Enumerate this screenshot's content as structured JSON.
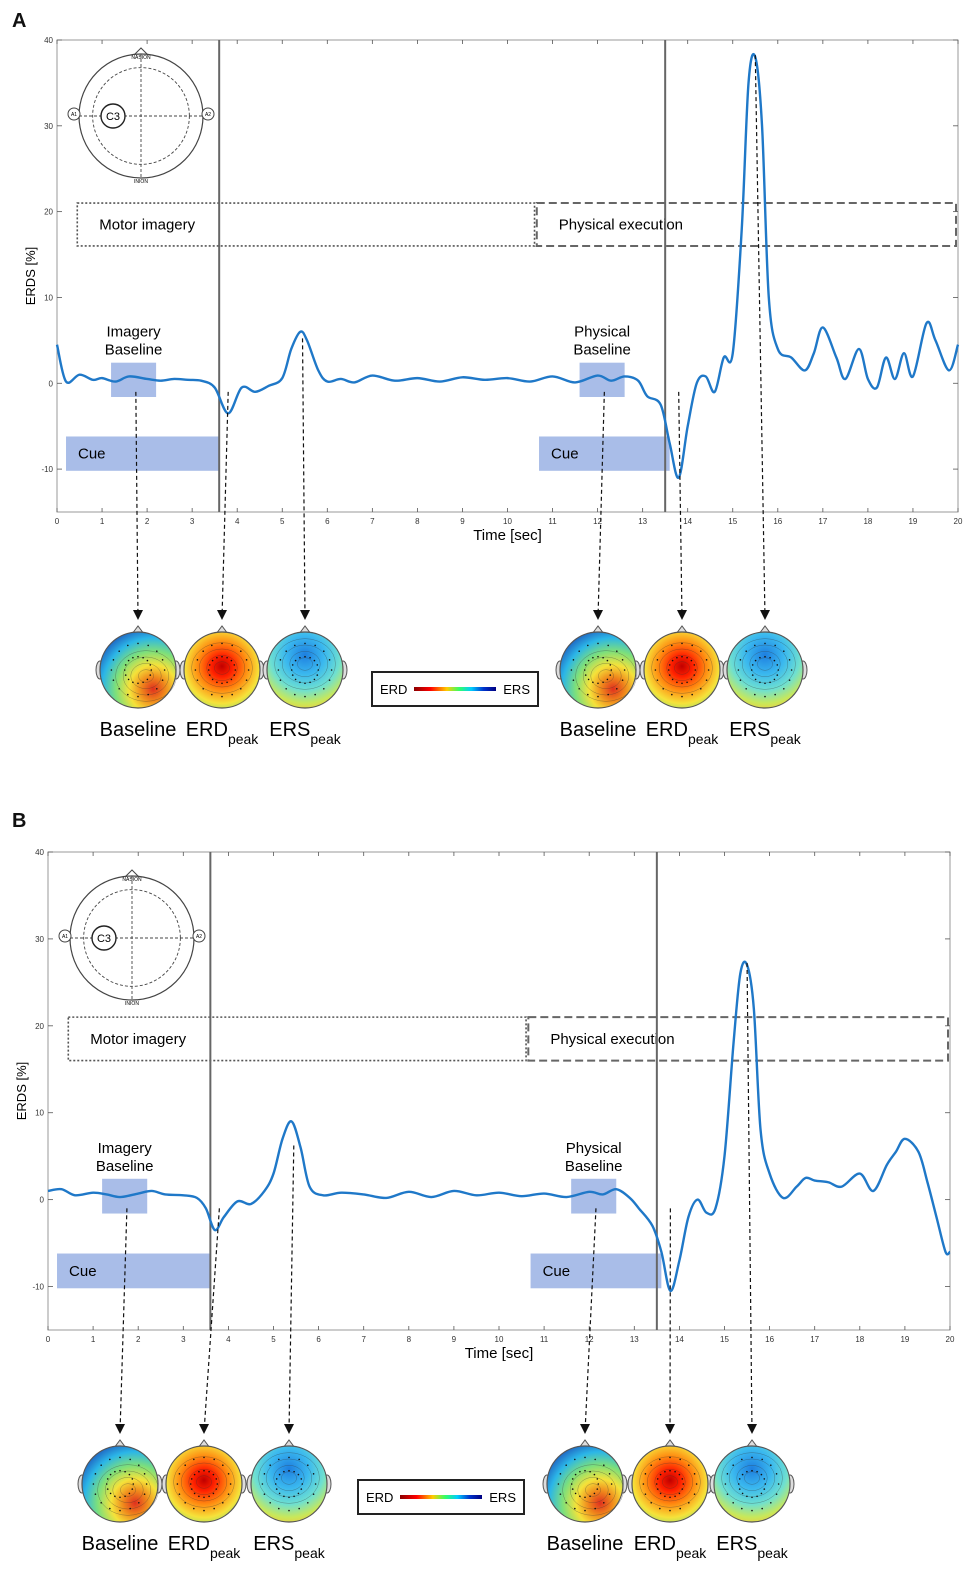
{
  "panels": [
    {
      "letter": "A",
      "chart_data": {
        "type": "line",
        "xlabel": "Time [sec]",
        "ylabel": "ERDS [%]",
        "xlim": [
          0,
          20
        ],
        "ylim": [
          -15,
          40
        ],
        "xticks": [
          0,
          1,
          2,
          3,
          4,
          5,
          6,
          7,
          8,
          9,
          10,
          11,
          12,
          13,
          14,
          15,
          16,
          17,
          18,
          19,
          20
        ],
        "yticks": [
          -10,
          0,
          10,
          20,
          30,
          40
        ],
        "vlines": [
          3.6,
          13.5
        ],
        "series": [
          {
            "x": [
              0,
              0.2,
              0.5,
              0.8,
              1.0,
              1.3,
              1.6,
              2.0,
              2.3,
              2.6,
              2.9,
              3.2,
              3.5,
              3.8,
              4.1,
              4.4,
              4.7,
              5.0,
              5.2,
              5.4,
              5.55,
              5.8,
              6.0,
              6.3,
              6.6,
              7.0,
              7.5,
              8.0,
              8.5,
              9.0,
              9.5,
              10.0,
              10.5,
              11.0,
              11.5,
              12.0,
              12.3,
              12.6,
              12.9,
              13.1,
              13.4,
              13.6,
              13.8,
              14.0,
              14.2,
              14.4,
              14.6,
              14.8,
              15.0,
              15.2,
              15.35,
              15.5,
              15.65,
              15.8,
              16.0,
              16.3,
              16.6,
              16.8,
              17.0,
              17.3,
              17.5,
              17.8,
              18.0,
              18.2,
              18.4,
              18.6,
              18.8,
              19.0,
              19.3,
              19.5,
              19.8,
              20.0
            ],
            "y": [
              4.5,
              0.2,
              1.0,
              0.4,
              0.6,
              0.2,
              0.8,
              0.5,
              0.3,
              0.5,
              0.4,
              0.3,
              -0.5,
              -3.5,
              -0.5,
              -1.0,
              -0.3,
              0.6,
              4.0,
              6.0,
              5.0,
              1.5,
              0.2,
              0.5,
              0.1,
              0.9,
              0.3,
              0.6,
              0.2,
              0.7,
              0.4,
              0.6,
              0.2,
              0.8,
              0.1,
              0.9,
              0.3,
              0.8,
              0.3,
              -1.5,
              -2.5,
              -7.0,
              -11.0,
              -5.0,
              0.0,
              0.8,
              -1.0,
              3.0,
              3.5,
              18.0,
              35.0,
              38.0,
              30.0,
              10.0,
              4.0,
              3.0,
              1.5,
              3.5,
              6.5,
              3.0,
              0.5,
              4.0,
              0.5,
              -0.5,
              3.0,
              0.5,
              3.5,
              0.8,
              7.0,
              5.0,
              1.5,
              4.5
            ]
          }
        ]
      },
      "labels": {
        "motor_imagery": "Motor imagery",
        "physical_execution": "Physical execution",
        "imagery_baseline_1": "Imagery",
        "imagery_baseline_2": "Baseline",
        "physical_baseline_1": "Physical",
        "physical_baseline_2": "Baseline",
        "cue": "Cue",
        "nasion": "NASION",
        "inion": "INION",
        "a1": "A1",
        "a2": "A2",
        "electrode": "C3"
      },
      "legend": {
        "left": "ERD",
        "right": "ERS"
      },
      "topo_labels": [
        {
          "main": "Baseline",
          "sub": ""
        },
        {
          "main": "ERD",
          "sub": "peak"
        },
        {
          "main": "ERS",
          "sub": "peak"
        },
        {
          "main": "Baseline",
          "sub": ""
        },
        {
          "main": "ERD",
          "sub": "peak"
        },
        {
          "main": "ERS",
          "sub": "peak"
        }
      ]
    },
    {
      "letter": "B",
      "chart_data": {
        "type": "line",
        "xlabel": "Time [sec]",
        "ylabel": "ERDS [%]",
        "xlim": [
          0,
          20
        ],
        "ylim": [
          -15,
          40
        ],
        "xticks": [
          0,
          1,
          2,
          3,
          4,
          5,
          6,
          7,
          8,
          9,
          10,
          11,
          12,
          13,
          14,
          15,
          16,
          17,
          18,
          19,
          20
        ],
        "yticks": [
          -10,
          0,
          10,
          20,
          30,
          40
        ],
        "vlines": [
          3.6,
          13.5
        ],
        "series": [
          {
            "x": [
              0,
              0.3,
              0.6,
              1.0,
              1.3,
              1.6,
              2.0,
              2.3,
              2.6,
              3.0,
              3.3,
              3.5,
              3.7,
              3.9,
              4.2,
              4.5,
              4.8,
              5.0,
              5.2,
              5.4,
              5.6,
              5.8,
              6.1,
              6.5,
              7.0,
              7.5,
              8.0,
              8.5,
              9.0,
              9.5,
              10.0,
              10.5,
              11.0,
              11.5,
              12.0,
              12.3,
              12.6,
              12.9,
              13.1,
              13.4,
              13.6,
              13.8,
              14.0,
              14.2,
              14.4,
              14.6,
              14.8,
              15.0,
              15.2,
              15.35,
              15.5,
              15.65,
              15.8,
              16.0,
              16.3,
              16.6,
              16.8,
              17.0,
              17.3,
              17.6,
              18.0,
              18.3,
              18.6,
              18.8,
              19.0,
              19.3,
              19.5,
              19.7,
              19.9,
              20.0
            ],
            "y": [
              1.0,
              1.2,
              0.5,
              0.8,
              0.6,
              0.3,
              0.7,
              1.0,
              0.6,
              0.5,
              0.2,
              -1.0,
              -3.5,
              -2.0,
              -0.2,
              -0.5,
              1.0,
              3.0,
              7.0,
              9.0,
              6.0,
              1.5,
              0.5,
              0.8,
              0.6,
              0.2,
              0.9,
              0.3,
              1.0,
              0.5,
              0.8,
              0.4,
              0.7,
              0.3,
              0.9,
              0.6,
              1.2,
              0.2,
              -1.0,
              -3.0,
              -6.0,
              -10.5,
              -7.0,
              -2.0,
              0.0,
              -1.5,
              -1.0,
              5.0,
              18.0,
              26.0,
              27.0,
              22.0,
              8.0,
              3.0,
              0.2,
              1.5,
              2.5,
              2.2,
              2.0,
              1.5,
              3.0,
              1.0,
              4.0,
              5.5,
              7.0,
              5.5,
              2.0,
              -2.0,
              -6.0,
              -6.0
            ]
          }
        ]
      },
      "labels": {
        "motor_imagery": "Motor imagery",
        "physical_execution": "Physical execution",
        "imagery_baseline_1": "Imagery",
        "imagery_baseline_2": "Baseline",
        "physical_baseline_1": "Physical",
        "physical_baseline_2": "Baseline",
        "cue": "Cue",
        "nasion": "NASION",
        "inion": "INION",
        "a1": "A1",
        "a2": "A2",
        "electrode": "C3"
      },
      "legend": {
        "left": "ERD",
        "right": "ERS"
      },
      "topo_labels": [
        {
          "main": "Baseline",
          "sub": ""
        },
        {
          "main": "ERD",
          "sub": "peak"
        },
        {
          "main": "ERS",
          "sub": "peak"
        },
        {
          "main": "Baseline",
          "sub": ""
        },
        {
          "main": "ERD",
          "sub": "peak"
        },
        {
          "main": "ERS",
          "sub": "peak"
        }
      ]
    }
  ],
  "colors": {
    "line": "#1f78c8",
    "cue_box": "#a9bde8",
    "baseline_box": "#a9bde8",
    "vline": "#666666"
  }
}
